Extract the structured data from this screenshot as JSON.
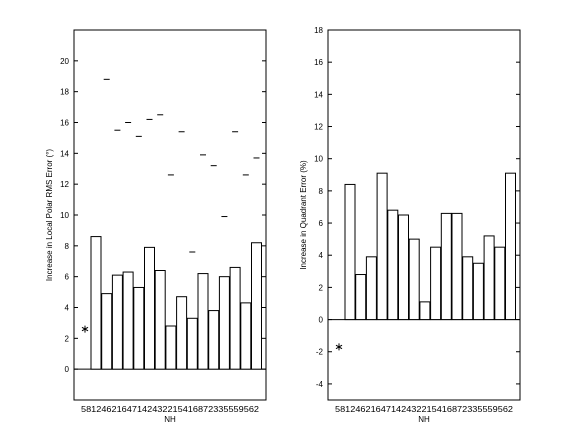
{
  "chart_data": [
    {
      "type": "bar",
      "ylabel": "Increase in Local Polar RMS Error (°)",
      "xlabel": "NH",
      "x_tick_text": "58124621647142432215416872335559562",
      "ylim": [
        -2,
        22
      ],
      "yticks": [
        0,
        2,
        4,
        6,
        8,
        10,
        12,
        14,
        16,
        18,
        20
      ],
      "values": [
        8.6,
        4.9,
        6.1,
        6.3,
        5.3,
        7.9,
        6.4,
        2.8,
        4.7,
        3.3,
        6.2,
        3.8,
        6.0,
        6.6,
        4.3,
        8.2
      ],
      "dash_markers": [
        18.8,
        15.5,
        16.0,
        15.1,
        16.2,
        16.5,
        12.6,
        15.4,
        7.6,
        13.9,
        13.2,
        9.9,
        15.4,
        12.6,
        13.7
      ],
      "star_marker": 2.6
    },
    {
      "type": "bar",
      "ylabel": "Increase in Quadrant Error (%)",
      "xlabel": "NH",
      "x_tick_text": "58124621647142432215416872335559562",
      "ylim": [
        -5,
        18
      ],
      "yticks": [
        -4,
        -2,
        0,
        2,
        4,
        6,
        8,
        10,
        12,
        14,
        16,
        18
      ],
      "values": [
        8.4,
        2.8,
        3.9,
        9.1,
        6.8,
        6.5,
        5.0,
        1.1,
        4.5,
        6.6,
        6.6,
        3.9,
        3.5,
        5.2,
        4.5,
        9.1
      ],
      "star_marker": -1.7
    }
  ]
}
